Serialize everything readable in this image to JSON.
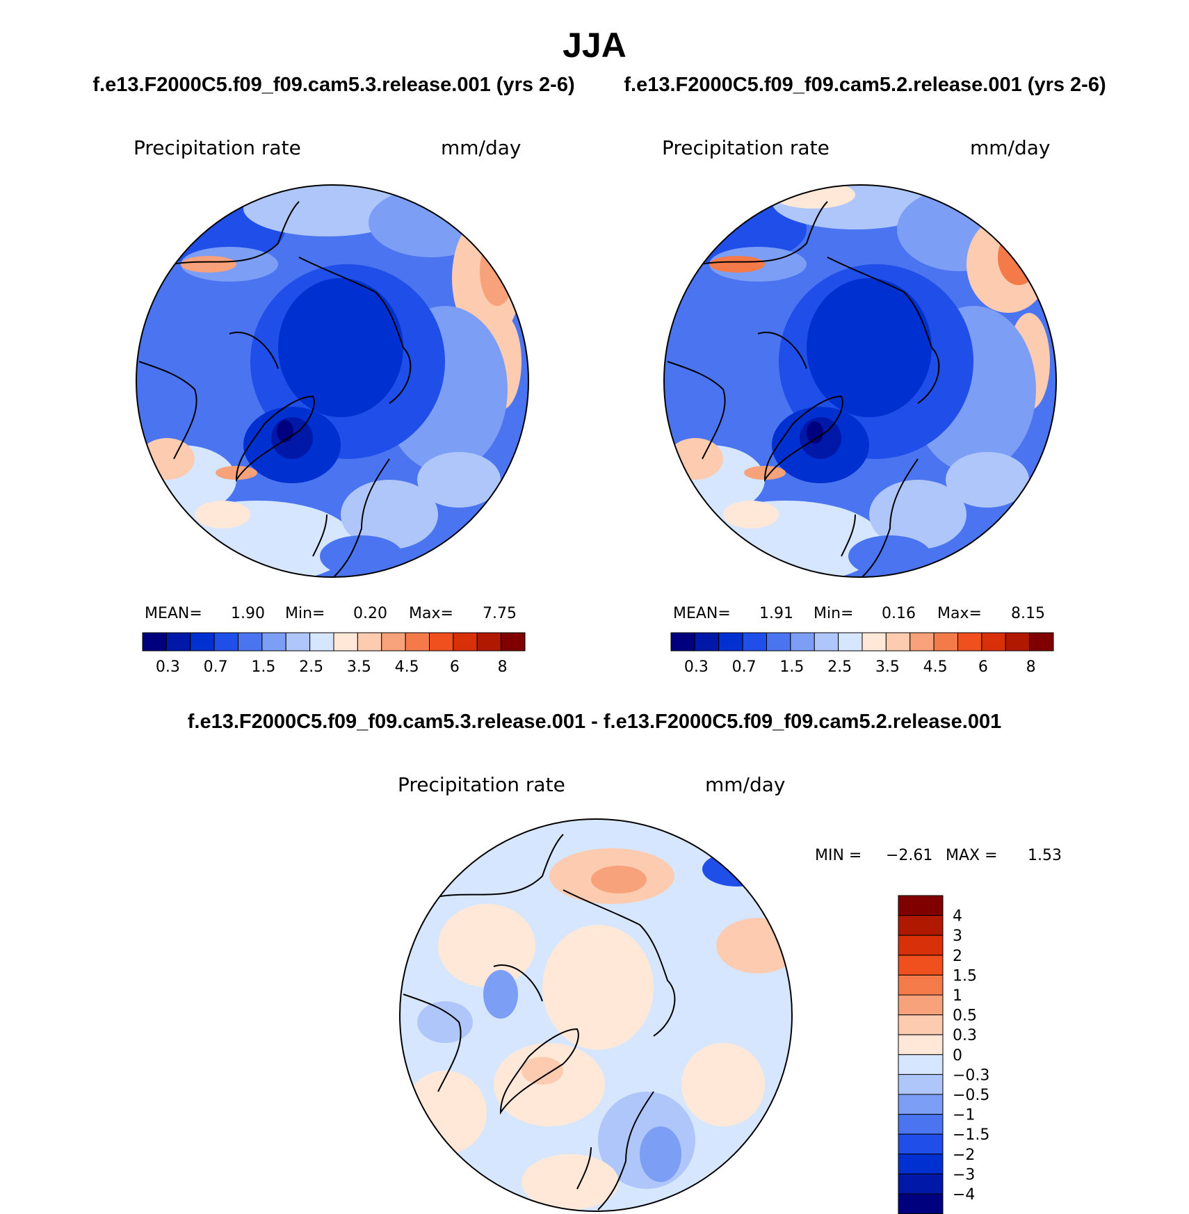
{
  "title": "JJA",
  "panels": [
    {
      "id": "case1",
      "heading": "f.e13.F2000C5.f09_f09.cam5.3.release.001 (yrs 2-6)",
      "variable": "Precipitation rate",
      "units": "mm/day",
      "stats": {
        "mean_label": "MEAN=",
        "mean": "1.90",
        "min_label": "Min=",
        "min": "0.20",
        "max_label": "Max=",
        "max": "7.75"
      }
    },
    {
      "id": "case2",
      "heading": "f.e13.F2000C5.f09_f09.cam5.2.release.001 (yrs 2-6)",
      "variable": "Precipitation rate",
      "units": "mm/day",
      "stats": {
        "mean_label": "MEAN=",
        "mean": "1.91",
        "min_label": "Min=",
        "min": "0.16",
        "max_label": "Max=",
        "max": "8.15"
      }
    },
    {
      "id": "diff",
      "heading": "f.e13.F2000C5.f09_f09.cam5.3.release.001 - f.e13.F2000C5.f09_f09.cam5.2.release.001",
      "variable": "Precipitation rate",
      "units": "mm/day",
      "stats": {
        "min_label": "MIN =",
        "min": "−2.61",
        "max_label": "MAX =",
        "max": "1.53"
      }
    }
  ],
  "colorbar_abs": {
    "colors": [
      "#00007f",
      "#0018a8",
      "#0030d0",
      "#1f4fe8",
      "#4a74f0",
      "#7d9ef5",
      "#aec6fa",
      "#d6e6ff",
      "#ffe8d8",
      "#fccbb0",
      "#f7a27a",
      "#f57a4a",
      "#f0501e",
      "#d83008",
      "#b01800",
      "#800000"
    ],
    "ticks": [
      "0.3",
      "0.7",
      "1.5",
      "2.5",
      "3.5",
      "4.5",
      "6",
      "8"
    ]
  },
  "colorbar_diff": {
    "colors": [
      "#00007f",
      "#0018a8",
      "#0030d0",
      "#1f4fe8",
      "#4a74f0",
      "#7d9ef5",
      "#aec6fa",
      "#d6e6ff",
      "#ffe8d8",
      "#fccbb0",
      "#f7a27a",
      "#f57a4a",
      "#f0501e",
      "#d83008",
      "#b01800",
      "#800000"
    ],
    "ticks": [
      "4",
      "3",
      "2",
      "1.5",
      "1",
      "0.5",
      "0.3",
      "0",
      "−0.3",
      "−0.5",
      "−1",
      "−1.5",
      "−2",
      "−3",
      "−4"
    ]
  }
}
